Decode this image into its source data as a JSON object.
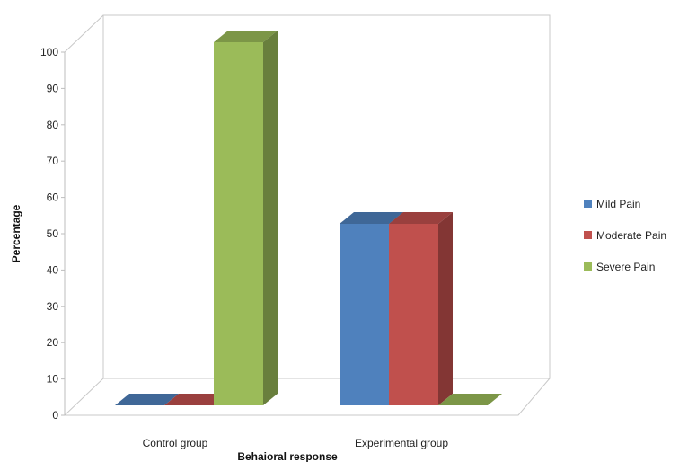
{
  "chart_data": {
    "type": "bar",
    "style": "3d-clustered-column",
    "categories": [
      "Control group",
      "Experimental group"
    ],
    "series": [
      {
        "name": "Mild Pain",
        "values": [
          0,
          50
        ],
        "color": "#4F81BD"
      },
      {
        "name": "Moderate Pain",
        "values": [
          0,
          50
        ],
        "color": "#C0504D"
      },
      {
        "name": "Severe Pain",
        "values": [
          100,
          0
        ],
        "color": "#9BBB59"
      }
    ],
    "title": "",
    "xlabel": "Behaioral response",
    "ylabel": "Percentage",
    "ylim": [
      0,
      100
    ],
    "yticks": [
      0,
      10,
      20,
      30,
      40,
      50,
      60,
      70,
      80,
      90,
      100
    ],
    "grid": false,
    "legend": "right"
  }
}
